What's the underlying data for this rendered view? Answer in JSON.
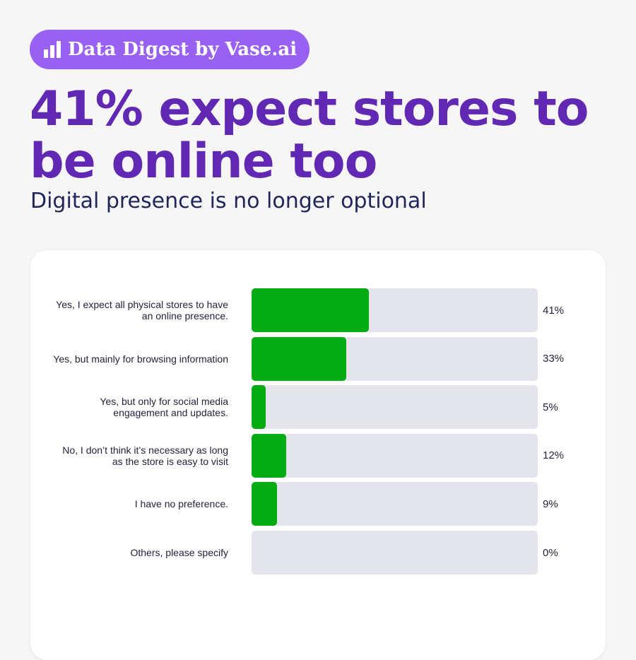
{
  "badge": {
    "text": "Data Digest by Vase.ai",
    "icon": "bar-chart-icon"
  },
  "headline": "41% expect stores to be online too",
  "subtitle": "Digital presence is no longer optional",
  "colors": {
    "accent": "#9961f2",
    "headline": "#6128b4",
    "bar_fill": "#04ab12",
    "bar_track": "#e4e4ec"
  },
  "chart_data": {
    "type": "bar",
    "orientation": "horizontal",
    "categories": [
      "Yes, I expect all physical stores to have an online presence.",
      "Yes, but mainly for browsing information",
      "Yes, but only for social media engagement and updates.",
      "No, I don’t think it’s necessary as long as the store is easy to visit",
      "I have no preference.",
      "Others, please specify"
    ],
    "values": [
      41,
      33,
      5,
      12,
      9,
      0
    ],
    "value_labels": [
      "41%",
      "33%",
      "5%",
      "12%",
      "9%",
      "0%"
    ],
    "xlim": [
      0,
      100
    ],
    "unit": "%",
    "grid": false,
    "legend": "none"
  }
}
